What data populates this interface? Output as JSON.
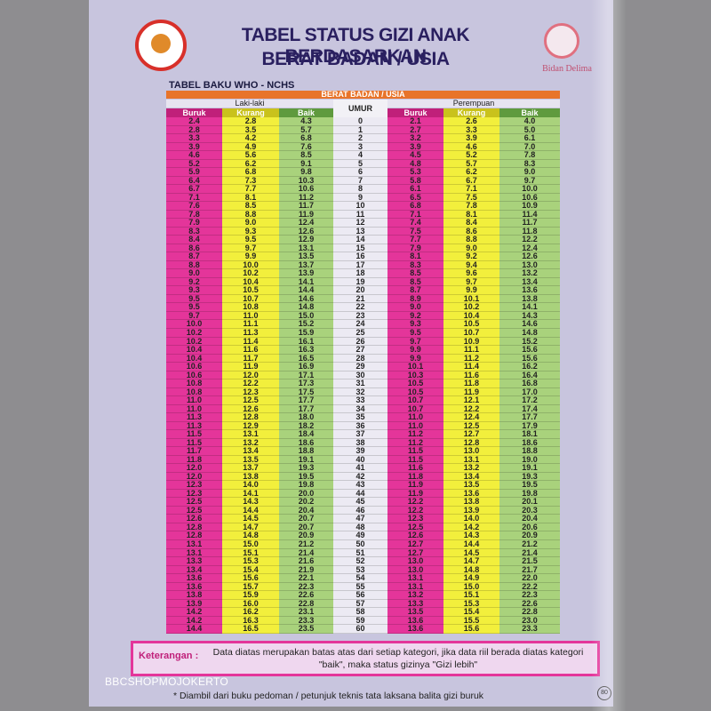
{
  "header": {
    "title_line1": "TABEL STATUS GIZI ANAK BERDASARKAN",
    "title_line2": "BERAT BADAN / USIA",
    "subtitle": "TABEL BAKU WHO - NCHS",
    "logo_text": "Bidan Delima"
  },
  "table": {
    "group_header": "BERAT BADAN / USIA",
    "groups": [
      "Laki-laki",
      "Perempuan"
    ],
    "umur_header": "UMUR",
    "columns": [
      "Buruk",
      "Kurang",
      "Baik",
      "Buruk",
      "Kurang",
      "Baik"
    ],
    "rows": [
      [
        "2.4",
        "2.8",
        "4.3",
        "0",
        "2.1",
        "2.6",
        "4.0"
      ],
      [
        "2.8",
        "3.5",
        "5.7",
        "1",
        "2.7",
        "3.3",
        "5.0"
      ],
      [
        "3.3",
        "4.2",
        "6.8",
        "2",
        "3.2",
        "3.9",
        "6.1"
      ],
      [
        "3.9",
        "4.9",
        "7.6",
        "3",
        "3.9",
        "4.6",
        "7.0"
      ],
      [
        "4.6",
        "5.6",
        "8.5",
        "4",
        "4.5",
        "5.2",
        "7.8"
      ],
      [
        "5.2",
        "6.2",
        "9.1",
        "5",
        "4.8",
        "5.7",
        "8.3"
      ],
      [
        "5.9",
        "6.8",
        "9.8",
        "6",
        "5.3",
        "6.2",
        "9.0"
      ],
      [
        "6.4",
        "7.3",
        "10.3",
        "7",
        "5.8",
        "6.7",
        "9.7"
      ],
      [
        "6.7",
        "7.7",
        "10.6",
        "8",
        "6.1",
        "7.1",
        "10.0"
      ],
      [
        "7.1",
        "8.1",
        "11.2",
        "9",
        "6.5",
        "7.5",
        "10.6"
      ],
      [
        "7.6",
        "8.5",
        "11.7",
        "10",
        "6.8",
        "7.8",
        "10.9"
      ],
      [
        "7.8",
        "8.8",
        "11.9",
        "11",
        "7.1",
        "8.1",
        "11.4"
      ],
      [
        "7.9",
        "9.0",
        "12.4",
        "12",
        "7.4",
        "8.4",
        "11.7"
      ],
      [
        "8.3",
        "9.3",
        "12.6",
        "13",
        "7.5",
        "8.6",
        "11.8"
      ],
      [
        "8.4",
        "9.5",
        "12.9",
        "14",
        "7.7",
        "8.8",
        "12.2"
      ],
      [
        "8.6",
        "9.7",
        "13.1",
        "15",
        "7.9",
        "9.0",
        "12.4"
      ],
      [
        "8.7",
        "9.9",
        "13.5",
        "16",
        "8.1",
        "9.2",
        "12.6"
      ],
      [
        "8.8",
        "10.0",
        "13.7",
        "17",
        "8.3",
        "9.4",
        "13.0"
      ],
      [
        "9.0",
        "10.2",
        "13.9",
        "18",
        "8.5",
        "9.6",
        "13.2"
      ],
      [
        "9.2",
        "10.4",
        "14.1",
        "19",
        "8.5",
        "9.7",
        "13.4"
      ],
      [
        "9.3",
        "10.5",
        "14.4",
        "20",
        "8.7",
        "9.9",
        "13.6"
      ],
      [
        "9.5",
        "10.7",
        "14.6",
        "21",
        "8.9",
        "10.1",
        "13.8"
      ],
      [
        "9.5",
        "10.8",
        "14.8",
        "22",
        "9.0",
        "10.2",
        "14.1"
      ],
      [
        "9.7",
        "11.0",
        "15.0",
        "23",
        "9.2",
        "10.4",
        "14.3"
      ],
      [
        "10.0",
        "11.1",
        "15.2",
        "24",
        "9.3",
        "10.5",
        "14.6"
      ],
      [
        "10.2",
        "11.3",
        "15.9",
        "25",
        "9.5",
        "10.7",
        "14.8"
      ],
      [
        "10.2",
        "11.4",
        "16.1",
        "26",
        "9.7",
        "10.9",
        "15.2"
      ],
      [
        "10.4",
        "11.6",
        "16.3",
        "27",
        "9.9",
        "11.1",
        "15.6"
      ],
      [
        "10.4",
        "11.7",
        "16.5",
        "28",
        "9.9",
        "11.2",
        "15.6"
      ],
      [
        "10.6",
        "11.9",
        "16.9",
        "29",
        "10.1",
        "11.4",
        "16.2"
      ],
      [
        "10.6",
        "12.0",
        "17.1",
        "30",
        "10.3",
        "11.6",
        "16.4"
      ],
      [
        "10.8",
        "12.2",
        "17.3",
        "31",
        "10.5",
        "11.8",
        "16.8"
      ],
      [
        "10.8",
        "12.3",
        "17.5",
        "32",
        "10.5",
        "11.9",
        "17.0"
      ],
      [
        "11.0",
        "12.5",
        "17.7",
        "33",
        "10.7",
        "12.1",
        "17.2"
      ],
      [
        "11.0",
        "12.6",
        "17.7",
        "34",
        "10.7",
        "12.2",
        "17.4"
      ],
      [
        "11.3",
        "12.8",
        "18.0",
        "35",
        "11.0",
        "12.4",
        "17.7"
      ],
      [
        "11.3",
        "12.9",
        "18.2",
        "36",
        "11.0",
        "12.5",
        "17.9"
      ],
      [
        "11.5",
        "13.1",
        "18.4",
        "37",
        "11.2",
        "12.7",
        "18.1"
      ],
      [
        "11.5",
        "13.2",
        "18.6",
        "38",
        "11.2",
        "12.8",
        "18.6"
      ],
      [
        "11.7",
        "13.4",
        "18.8",
        "39",
        "11.5",
        "13.0",
        "18.8"
      ],
      [
        "11.8",
        "13.5",
        "19.1",
        "40",
        "11.5",
        "13.1",
        "19.0"
      ],
      [
        "12.0",
        "13.7",
        "19.3",
        "41",
        "11.6",
        "13.2",
        "19.1"
      ],
      [
        "12.0",
        "13.8",
        "19.5",
        "42",
        "11.8",
        "13.4",
        "19.3"
      ],
      [
        "12.3",
        "14.0",
        "19.8",
        "43",
        "11.9",
        "13.5",
        "19.5"
      ],
      [
        "12.3",
        "14.1",
        "20.0",
        "44",
        "11.9",
        "13.6",
        "19.8"
      ],
      [
        "12.5",
        "14.3",
        "20.2",
        "45",
        "12.2",
        "13.8",
        "20.1"
      ],
      [
        "12.5",
        "14.4",
        "20.4",
        "46",
        "12.2",
        "13.9",
        "20.3"
      ],
      [
        "12.6",
        "14.5",
        "20.7",
        "47",
        "12.3",
        "14.0",
        "20.4"
      ],
      [
        "12.8",
        "14.7",
        "20.7",
        "48",
        "12.5",
        "14.2",
        "20.6"
      ],
      [
        "12.8",
        "14.8",
        "20.9",
        "49",
        "12.6",
        "14.3",
        "20.9"
      ],
      [
        "13.1",
        "15.0",
        "21.2",
        "50",
        "12.7",
        "14.4",
        "21.2"
      ],
      [
        "13.1",
        "15.1",
        "21.4",
        "51",
        "12.7",
        "14.5",
        "21.4"
      ],
      [
        "13.3",
        "15.3",
        "21.6",
        "52",
        "13.0",
        "14.7",
        "21.5"
      ],
      [
        "13.4",
        "15.4",
        "21.9",
        "53",
        "13.0",
        "14.8",
        "21.7"
      ],
      [
        "13.6",
        "15.6",
        "22.1",
        "54",
        "13.1",
        "14.9",
        "22.0"
      ],
      [
        "13.6",
        "15.7",
        "22.3",
        "55",
        "13.1",
        "15.0",
        "22.2"
      ],
      [
        "13.8",
        "15.9",
        "22.6",
        "56",
        "13.2",
        "15.1",
        "22.3"
      ],
      [
        "13.9",
        "16.0",
        "22.8",
        "57",
        "13.3",
        "15.3",
        "22.6"
      ],
      [
        "14.2",
        "16.2",
        "23.1",
        "58",
        "13.5",
        "15.4",
        "22.8"
      ],
      [
        "14.2",
        "16.3",
        "23.3",
        "59",
        "13.6",
        "15.5",
        "23.0"
      ],
      [
        "14.4",
        "16.5",
        "23.5",
        "60",
        "13.6",
        "15.6",
        "23.3"
      ]
    ]
  },
  "note": {
    "label": "Keterangan :",
    "text": "Data diatas merupakan batas atas dari setiap kategori, jika data riil berada diatas kategori \"baik\", maka status gizinya \"Gizi lebih\""
  },
  "footnote": "* Diambil dari buku pedoman / petunjuk teknis tata laksana balita gizi buruk",
  "watermark": "BBCSHOPMOJOKERTO",
  "page_number": "80"
}
